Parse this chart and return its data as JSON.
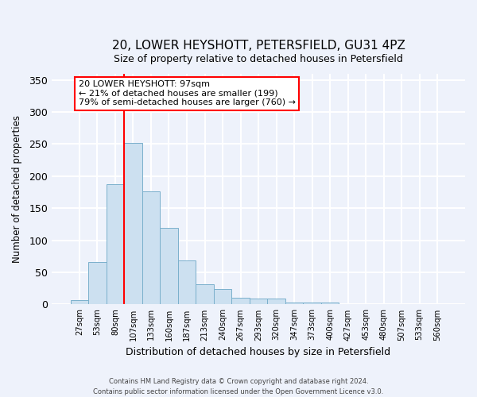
{
  "title": "20, LOWER HEYSHOTT, PETERSFIELD, GU31 4PZ",
  "subtitle": "Size of property relative to detached houses in Petersfield",
  "xlabel": "Distribution of detached houses by size in Petersfield",
  "ylabel": "Number of detached properties",
  "bar_labels": [
    "27sqm",
    "53sqm",
    "80sqm",
    "107sqm",
    "133sqm",
    "160sqm",
    "187sqm",
    "213sqm",
    "240sqm",
    "267sqm",
    "293sqm",
    "320sqm",
    "347sqm",
    "373sqm",
    "400sqm",
    "427sqm",
    "453sqm",
    "480sqm",
    "507sqm",
    "533sqm",
    "560sqm"
  ],
  "bar_values": [
    7,
    66,
    188,
    252,
    176,
    119,
    69,
    32,
    24,
    11,
    9,
    9,
    3,
    3,
    3,
    1,
    0,
    0,
    1,
    0,
    1
  ],
  "bar_color": "#cce0f0",
  "bar_edge_color": "#7ab0cc",
  "vline_x_index": 3,
  "vline_color": "red",
  "annotation_text_line1": "20 LOWER HEYSHOTT: 97sqm",
  "annotation_text_line2": "← 21% of detached houses are smaller (199)",
  "annotation_text_line3": "79% of semi-detached houses are larger (760) →",
  "annotation_box_color": "white",
  "annotation_box_edgecolor": "red",
  "ylim": [
    0,
    360
  ],
  "yticks": [
    0,
    50,
    100,
    150,
    200,
    250,
    300,
    350
  ],
  "footer_line1": "Contains HM Land Registry data © Crown copyright and database right 2024.",
  "footer_line2": "Contains public sector information licensed under the Open Government Licence v3.0.",
  "background_color": "#eef2fb",
  "grid_color": "white"
}
